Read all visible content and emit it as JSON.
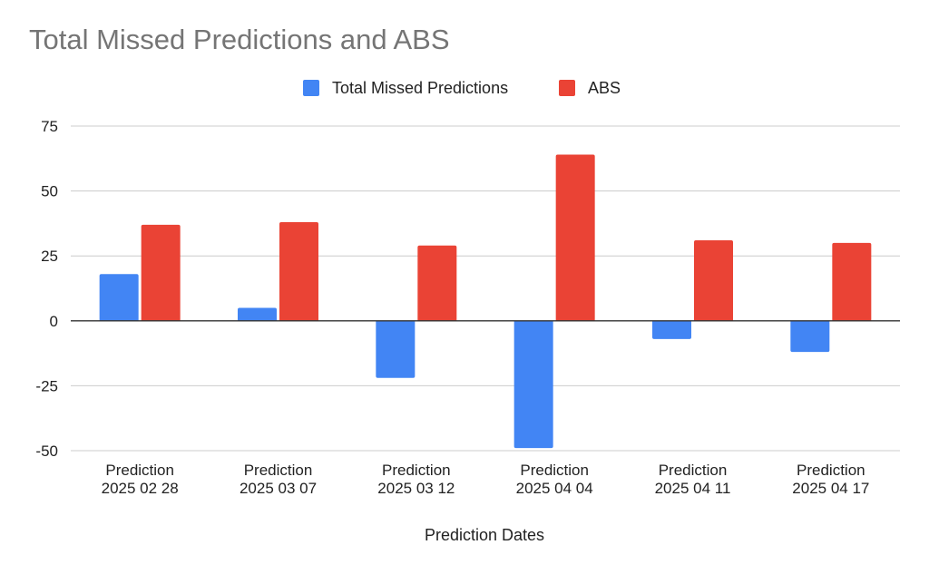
{
  "chart_data": {
    "type": "bar",
    "title": "Total Missed Predictions and ABS",
    "xlabel": "Prediction Dates",
    "ylabel": "",
    "ylim": [
      -50,
      75
    ],
    "yticks": [
      75,
      50,
      25,
      0,
      -25,
      -50
    ],
    "grid": true,
    "legend_position": "top",
    "categories": [
      [
        "Prediction",
        "2025 02 28"
      ],
      [
        "Prediction",
        "2025 03 07"
      ],
      [
        "Prediction",
        "2025 03 12"
      ],
      [
        "Prediction",
        "2025 04 04"
      ],
      [
        "Prediction",
        "2025 04 11"
      ],
      [
        "Prediction",
        "2025 04 17"
      ]
    ],
    "series": [
      {
        "name": "Total Missed Predictions",
        "color": "#4285f4",
        "values": [
          18,
          5,
          -22,
          -49,
          -7,
          -12
        ]
      },
      {
        "name": "ABS",
        "color": "#ea4335",
        "values": [
          37,
          38,
          29,
          64,
          31,
          30
        ]
      }
    ]
  }
}
